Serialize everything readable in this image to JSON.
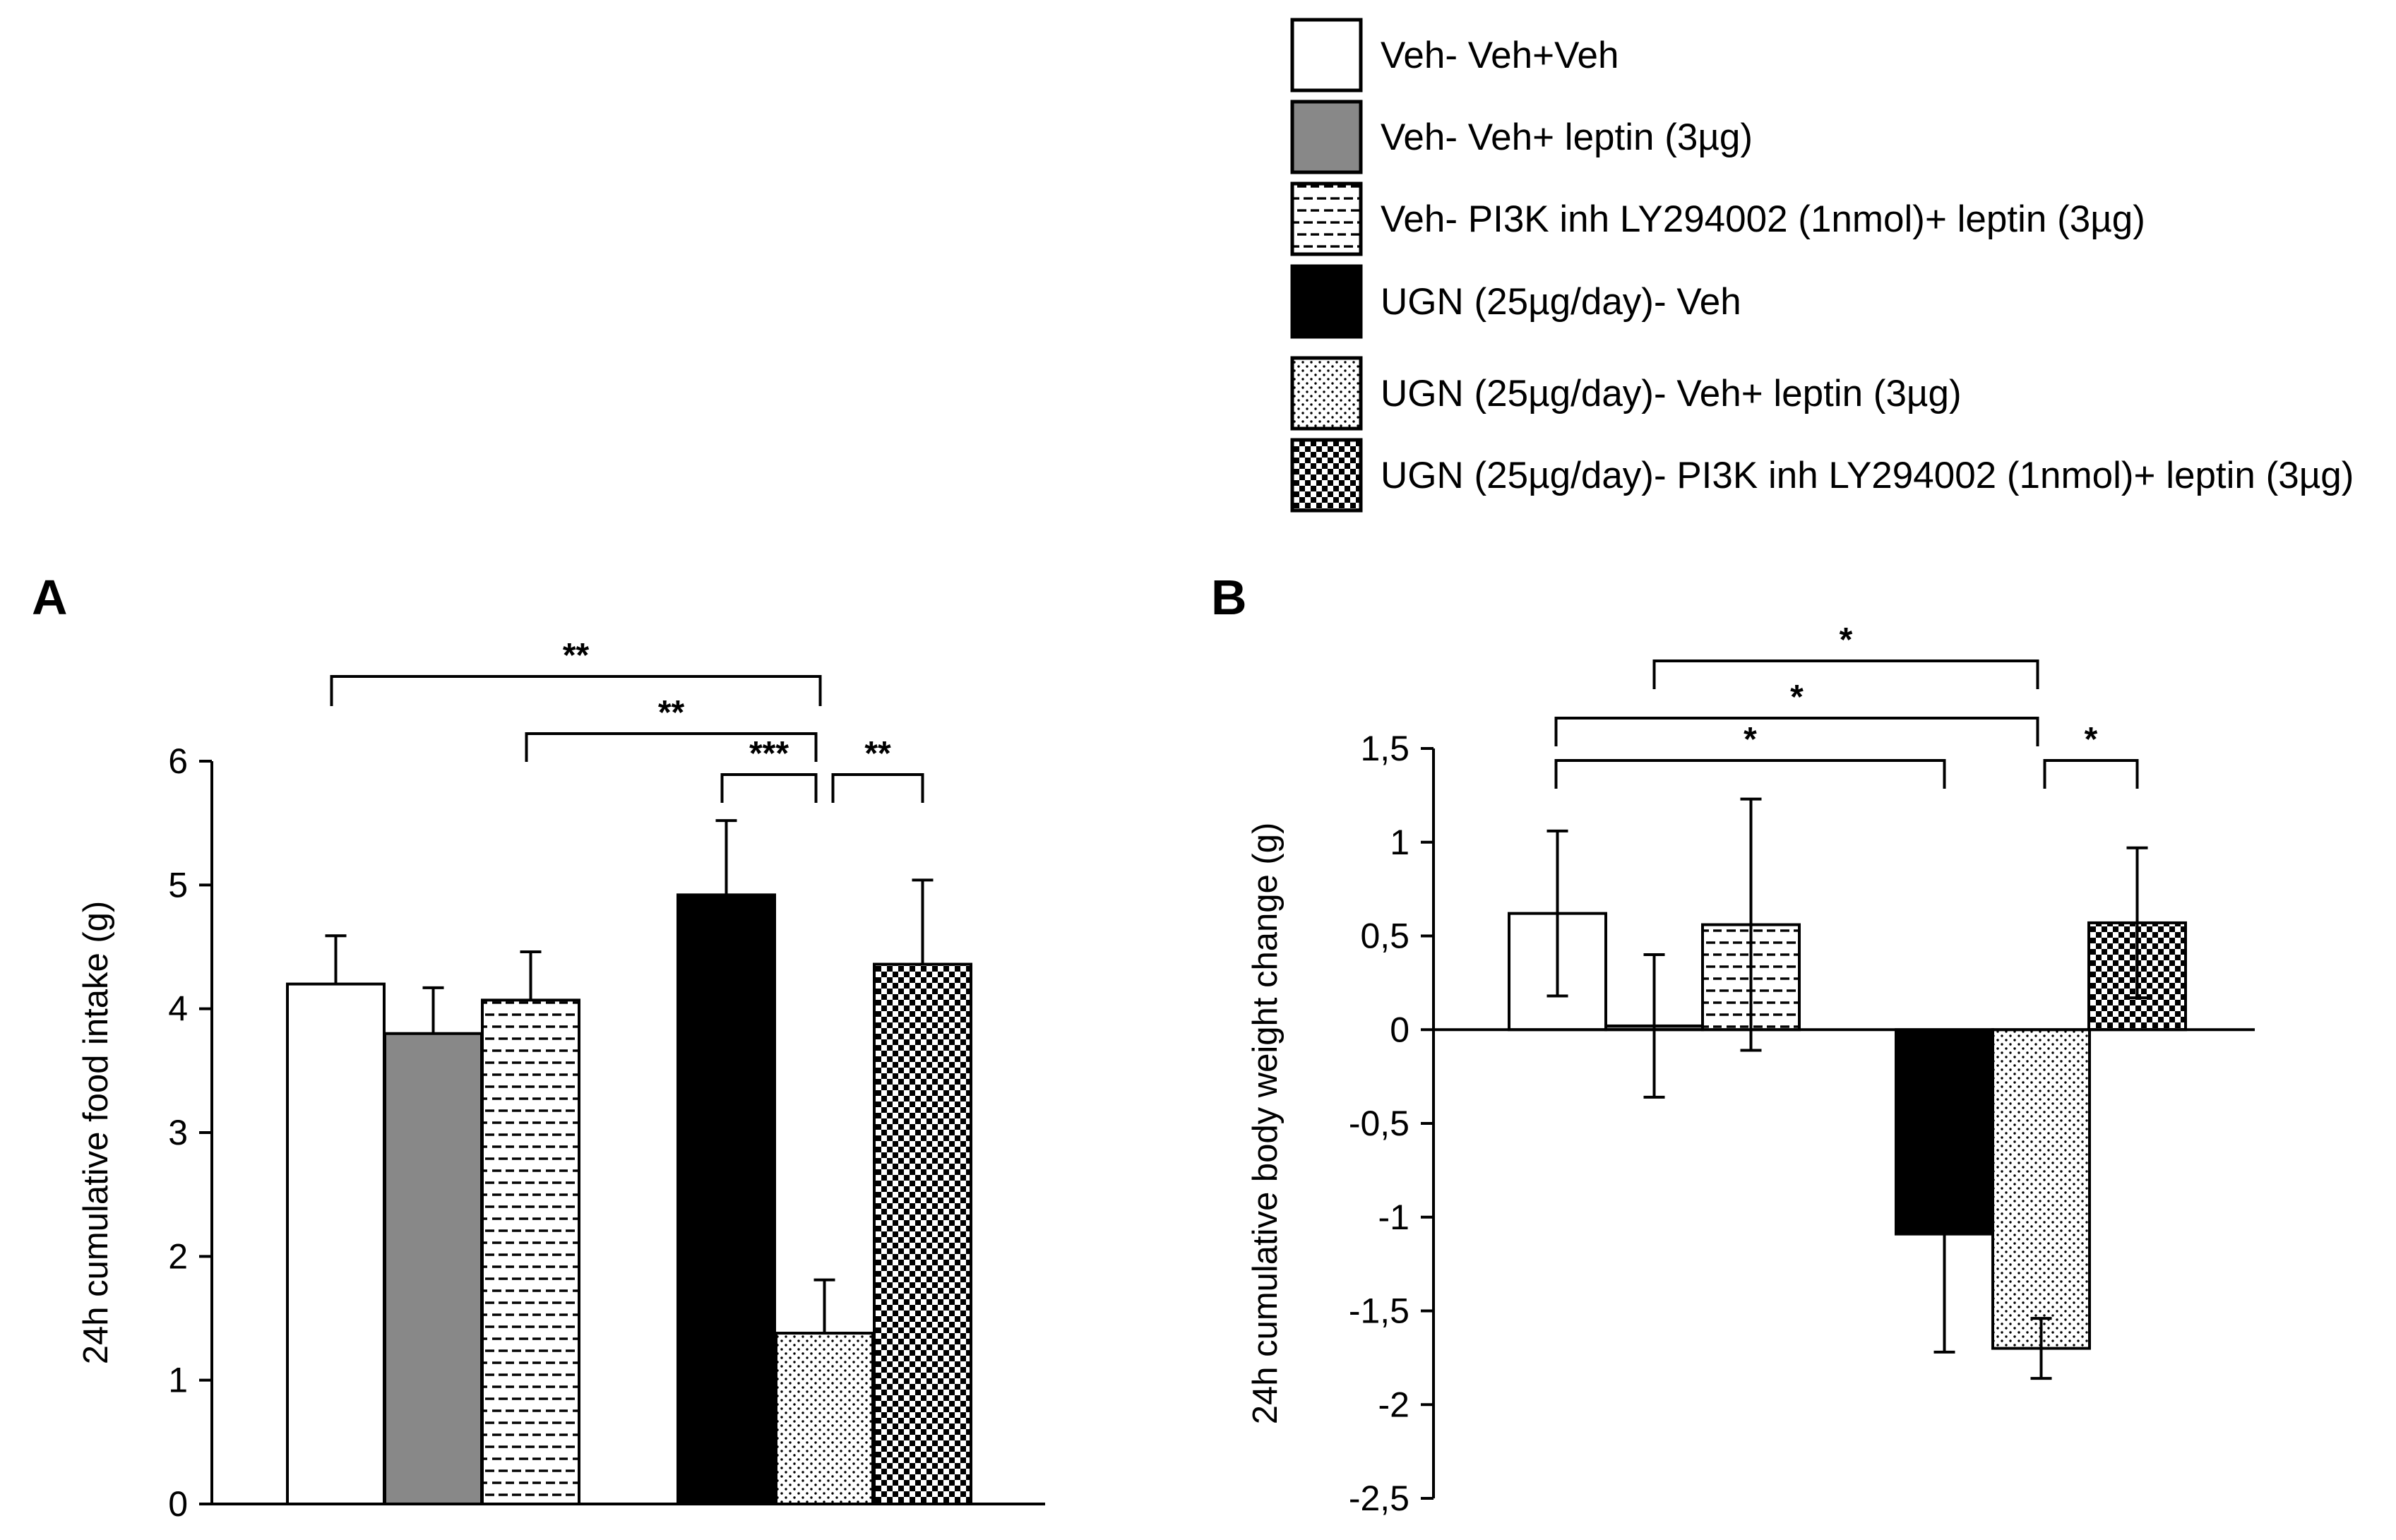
{
  "legend": {
    "items": [
      {
        "label": "Veh- Veh+Veh",
        "fill": "white"
      },
      {
        "label": "Veh- Veh+ leptin (3µg)",
        "fill": "gray"
      },
      {
        "label": "Veh- PI3K inh LY294002 (1nmol)+ leptin (3µg)",
        "fill": "dashes"
      },
      {
        "label": "UGN (25µg/day)- Veh",
        "fill": "black"
      },
      {
        "label": "UGN (25µg/day)- Veh+ leptin (3µg)",
        "fill": "dots"
      },
      {
        "label": "UGN (25µg/day)- PI3K inh LY294002 (1nmol)+ leptin (3µg)",
        "fill": "checker"
      }
    ]
  },
  "colors": {
    "gray_bar": "#888888",
    "black_bar": "#000000",
    "white_bar": "#ffffff",
    "axis": "#000000"
  },
  "chart_data": [
    {
      "panel": "A",
      "type": "bar",
      "ylabel": "24h cumulative food intake (g)",
      "ylim": [
        0,
        6
      ],
      "yticks": [
        0,
        1,
        2,
        3,
        4,
        5,
        6
      ],
      "ytick_labels": [
        "0",
        "1",
        "2",
        "3",
        "4",
        "5",
        "6"
      ],
      "categories": [
        "Veh- Veh+Veh",
        "Veh- Veh+ leptin (3µg)",
        "Veh- PI3K inh LY294002 (1nmol)+ leptin (3µg)",
        "UGN (25µg/day)- Veh",
        "UGN (25µg/day)- Veh+ leptin (3µg)",
        "UGN (25µg/day)- PI3K inh LY294002 (1nmol)+ leptin (3µg)"
      ],
      "values": [
        4.2,
        3.8,
        4.07,
        4.92,
        1.38,
        4.36
      ],
      "errors": [
        0.39,
        0.37,
        0.39,
        0.6,
        0.43,
        0.68
      ],
      "significance": [
        {
          "from": 0,
          "to": 4,
          "label": "**"
        },
        {
          "from": 2,
          "to": 4,
          "label": "**"
        },
        {
          "from": 3,
          "to": 4,
          "label": "***"
        },
        {
          "from": 4,
          "to": 5,
          "label": "**"
        }
      ]
    },
    {
      "panel": "B",
      "type": "bar",
      "ylabel": "24h cumulative body weight change (g)",
      "ylim": [
        -2.5,
        1.5
      ],
      "yticks": [
        -2.5,
        -2,
        -1.5,
        -1,
        -0.5,
        0,
        0.5,
        1,
        1.5
      ],
      "ytick_labels": [
        "-2,5",
        "-2",
        "-1,5",
        "-1",
        "-0,5",
        "0",
        "0,5",
        "1",
        "1,5"
      ],
      "categories": [
        "Veh- Veh+Veh",
        "Veh- Veh+ leptin (3µg)",
        "Veh- PI3K inh LY294002 (1nmol)+ leptin (3µg)",
        "UGN (25µg/day)- Veh",
        "UGN (25µg/day)- Veh+ leptin (3µg)",
        "UGN (25µg/day)- PI3K inh LY294002 (1nmol)+ leptin (3µg)"
      ],
      "values": [
        0.62,
        0.02,
        0.56,
        -1.09,
        -1.7,
        0.57
      ],
      "errors": [
        0.44,
        0.38,
        0.67,
        0.63,
        0.16,
        0.4
      ],
      "significance": [
        {
          "from": 1,
          "to": 4,
          "label": "*"
        },
        {
          "from": 0,
          "to": 4,
          "label": "*"
        },
        {
          "from": 0,
          "to": 3,
          "label": "*"
        },
        {
          "from": 4,
          "to": 5,
          "label": "*"
        }
      ]
    }
  ]
}
